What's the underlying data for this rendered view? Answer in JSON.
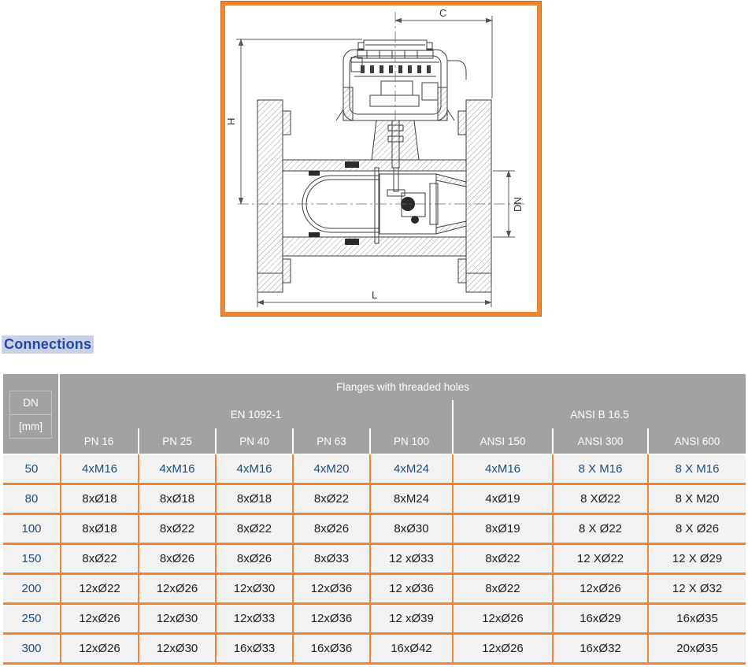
{
  "heading": "Connections",
  "drawing": {
    "dim_labels": {
      "c": "C",
      "h": "H",
      "dn": "DN",
      "l": "L"
    }
  },
  "table": {
    "corner": {
      "line1": "DN",
      "line2": "[mm]"
    },
    "group_header": "Flanges with threaded holes",
    "standards": [
      {
        "label": "EN 1092-1",
        "span": 5
      },
      {
        "label": "ANSI B 16.5",
        "span": 3
      }
    ],
    "columns": [
      "PN 16",
      "PN 25",
      "PN 40",
      "PN 63",
      "PN 100",
      "ANSI 150",
      "ANSI 300",
      "ANSI 600"
    ],
    "rows": [
      {
        "dn": "50",
        "accent": true,
        "values": [
          "4xM16",
          "4xM16",
          "4xM16",
          "4xM20",
          "4xM24",
          "4xM16",
          "8 X M16",
          "8 X M16"
        ]
      },
      {
        "dn": "80",
        "accent": false,
        "values": [
          "8xØ18",
          "8xØ18",
          "8xØ18",
          "8xØ22",
          "8xM24",
          "4xØ19",
          "8 XØ22",
          "8 X M20"
        ]
      },
      {
        "dn": "100",
        "accent": false,
        "values": [
          "8xØ18",
          "8xØ22",
          "8xØ22",
          "8xØ26",
          "8xØ30",
          "8xØ19",
          "8 X Ø22",
          "8 X Ø26"
        ]
      },
      {
        "dn": "150",
        "accent": false,
        "values": [
          "8xØ22",
          "8xØ26",
          "8xØ26",
          "8xØ33",
          "12 xØ33",
          "8xØ22",
          "12 XØ22",
          "12 X Ø29"
        ]
      },
      {
        "dn": "200",
        "accent": false,
        "values": [
          "12xØ22",
          "12xØ26",
          "12xØ30",
          "12xØ36",
          "12 xØ36",
          "8xØ22",
          "12xØ26",
          "12 X Ø32"
        ]
      },
      {
        "dn": "250",
        "accent": false,
        "values": [
          "12xØ26",
          "12xØ30",
          "12xØ33",
          "12xØ36",
          "12 xØ39",
          "12xØ26",
          "16xØ29",
          "16xØ35"
        ]
      },
      {
        "dn": "300",
        "accent": false,
        "values": [
          "12xØ26",
          "12xØ30",
          "16xØ33",
          "16xØ36",
          "16xØ42",
          "12xØ26",
          "16xØ32",
          "20xØ35"
        ]
      }
    ]
  },
  "colors": {
    "frame_orange": "#ED8633",
    "table_border_orange": "#EE8434",
    "header_gray": "#A2A2A2",
    "cell_background": "#F2F2F2",
    "blue_text": "#1F4E79",
    "heading_blue": "#2547A8",
    "heading_highlight": "#C9D2E4"
  }
}
